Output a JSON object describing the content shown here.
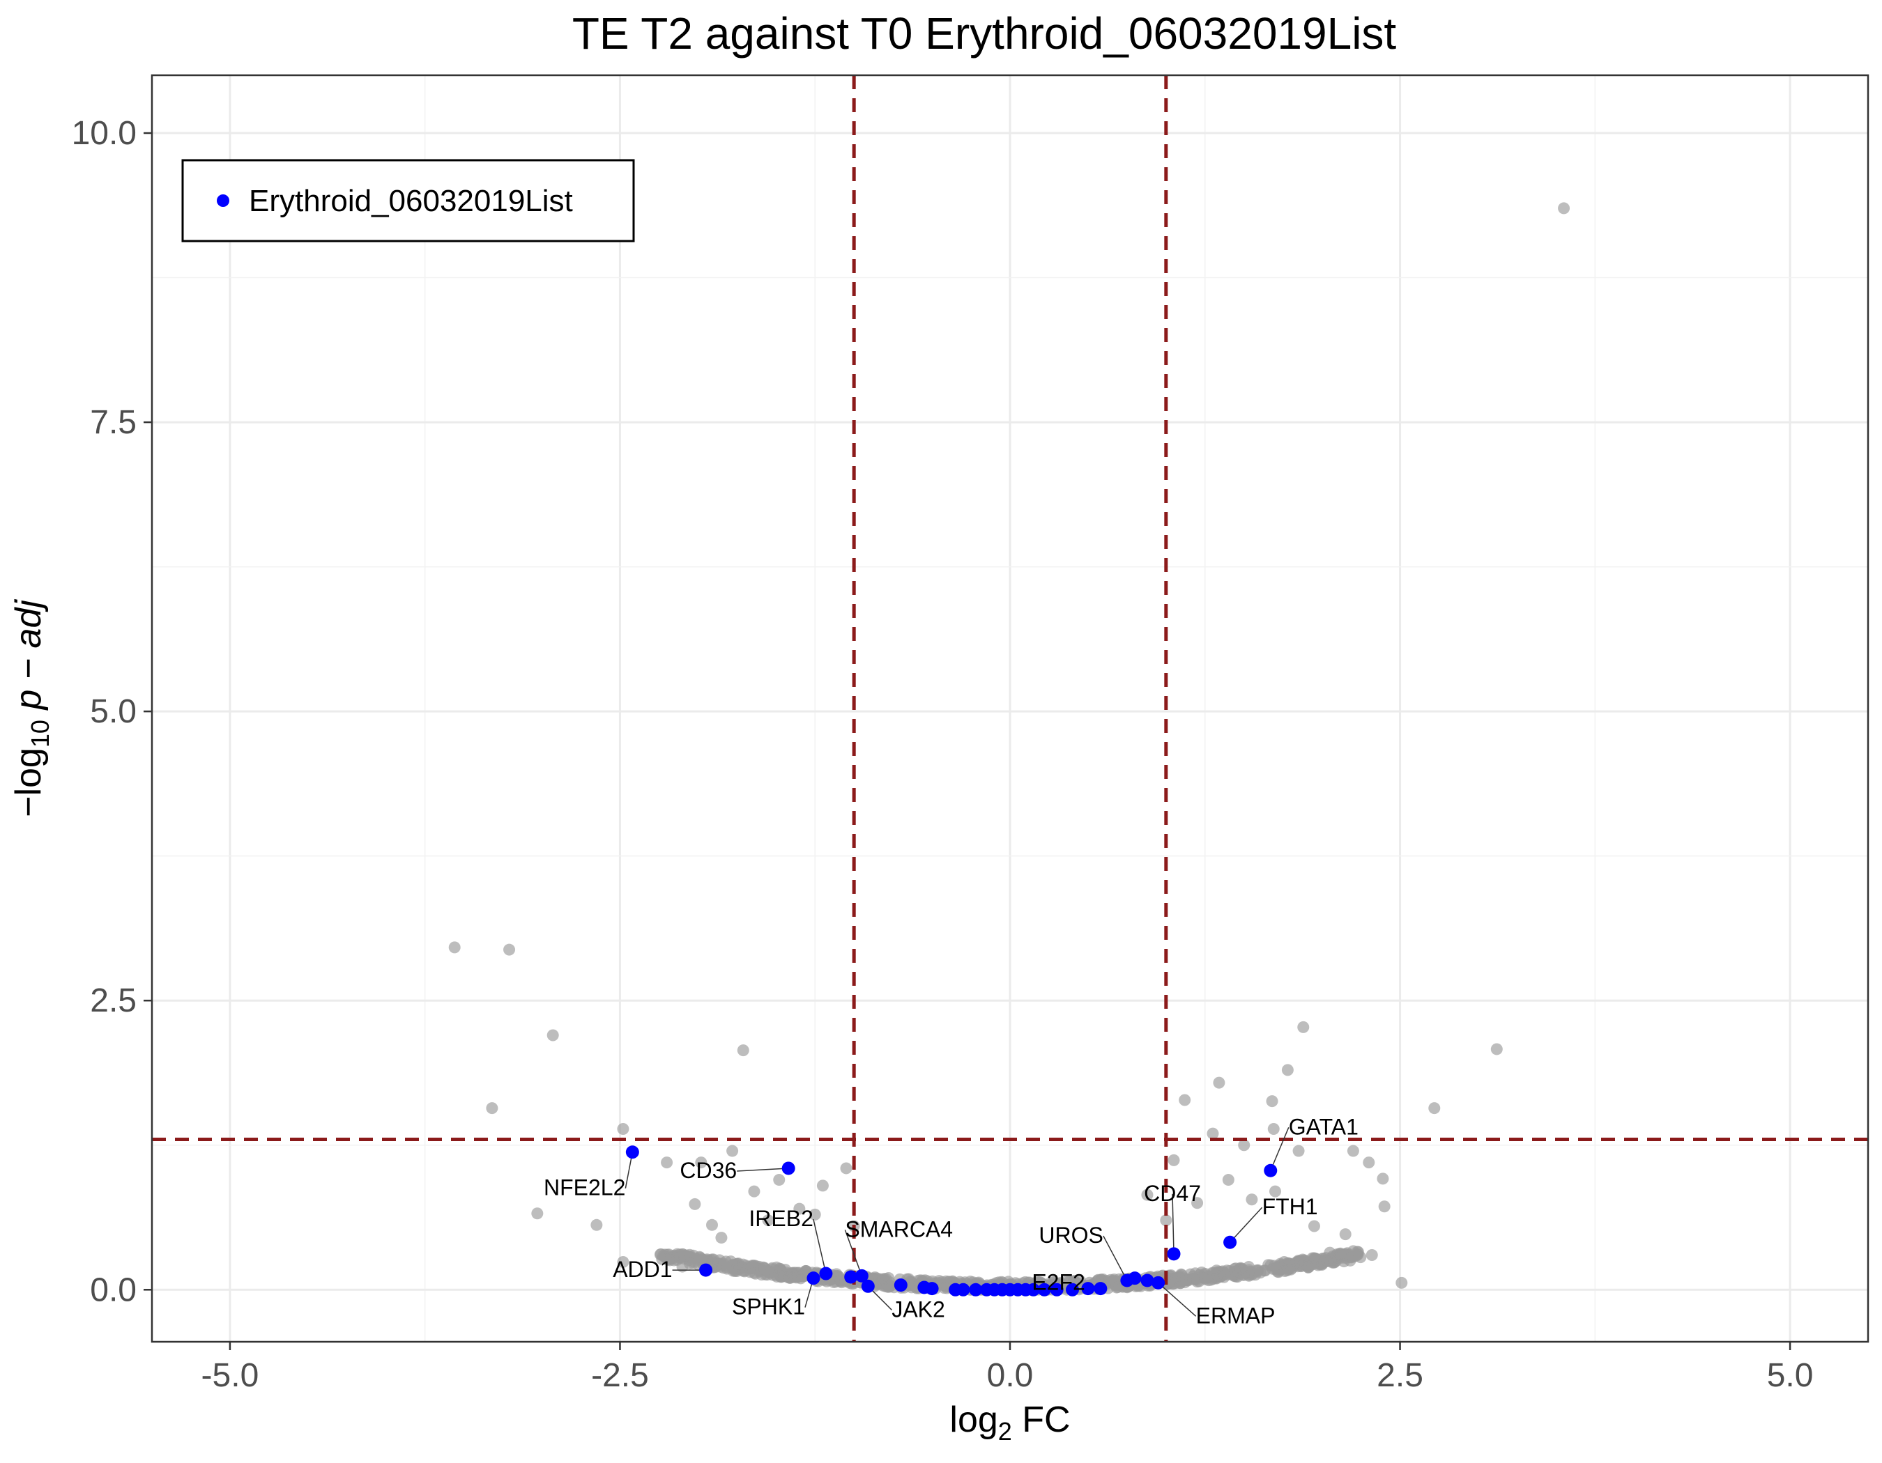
{
  "chart_data": {
    "type": "scatter",
    "title": "TE T2 against T0 Erythroid_06032019List",
    "xlabel": {
      "base": "log",
      "sub": "2",
      "rest": " FC"
    },
    "ylabel": {
      "pre": "−log",
      "sub": "10",
      "rest": " p − adj"
    },
    "xlim": [
      -5.5,
      5.5
    ],
    "ylim": [
      -0.45,
      10.5
    ],
    "x_ticks": [
      {
        "value": -5.0,
        "label": "-5.0"
      },
      {
        "value": -2.5,
        "label": "-2.5"
      },
      {
        "value": 0.0,
        "label": "0.0"
      },
      {
        "value": 2.5,
        "label": "2.5"
      },
      {
        "value": 5.0,
        "label": "5.0"
      }
    ],
    "y_ticks": [
      {
        "value": 0.0,
        "label": "0.0"
      },
      {
        "value": 2.5,
        "label": "2.5"
      },
      {
        "value": 5.0,
        "label": "5.0"
      },
      {
        "value": 7.5,
        "label": "7.5"
      },
      {
        "value": 10.0,
        "label": "10.0"
      }
    ],
    "grid": true,
    "thresholds": {
      "fc_lines": [
        -1,
        1
      ],
      "padj_line": 1.3,
      "color": "#8b1a1a"
    },
    "legend": {
      "position": "top-left",
      "entries": [
        {
          "name": "Erythroid_06032019List",
          "color": "#0000ff"
        }
      ]
    },
    "background_color": "#999999",
    "highlight_color": "#0000ff",
    "background_points": [
      [
        3.55,
        9.35
      ],
      [
        -3.56,
        2.96
      ],
      [
        -3.21,
        2.94
      ],
      [
        -2.93,
        2.2
      ],
      [
        -1.71,
        2.07
      ],
      [
        3.12,
        2.08
      ],
      [
        1.88,
        2.27
      ],
      [
        1.78,
        1.9
      ],
      [
        1.12,
        1.64
      ],
      [
        1.34,
        1.79
      ],
      [
        1.68,
        1.63
      ],
      [
        2.72,
        1.57
      ],
      [
        -3.32,
        1.57
      ],
      [
        -2.48,
        1.39
      ],
      [
        1.69,
        1.39
      ],
      [
        -3.03,
        0.66
      ],
      [
        -2.65,
        0.56
      ],
      [
        -2.48,
        0.24
      ],
      [
        2.51,
        0.06
      ],
      [
        -1.78,
        1.2
      ],
      [
        -1.98,
        1.1
      ],
      [
        -2.2,
        1.1
      ],
      [
        -1.05,
        1.05
      ],
      [
        1.05,
        1.12
      ],
      [
        2.2,
        1.2
      ],
      [
        2.3,
        1.1
      ],
      [
        2.39,
        0.96
      ],
      [
        2.4,
        0.72
      ],
      [
        2.32,
        0.3
      ],
      [
        2.05,
        0.32
      ],
      [
        -2.02,
        0.74
      ],
      [
        -1.91,
        0.56
      ],
      [
        -2.1,
        0.2
      ],
      [
        -1.48,
        0.95
      ],
      [
        -1.64,
        0.85
      ],
      [
        1.85,
        1.2
      ],
      [
        1.5,
        1.25
      ],
      [
        1.3,
        1.35
      ],
      [
        0.88,
        0.82
      ],
      [
        -1.2,
        0.9
      ],
      [
        -1.0,
        0.55
      ],
      [
        1.0,
        0.6
      ],
      [
        1.55,
        0.78
      ],
      [
        1.95,
        0.55
      ],
      [
        2.15,
        0.48
      ],
      [
        -1.85,
        0.45
      ],
      [
        -1.55,
        0.6
      ],
      [
        -1.35,
        0.7
      ],
      [
        1.4,
        0.95
      ],
      [
        1.7,
        0.85
      ],
      [
        -1.25,
        0.65
      ],
      [
        1.2,
        0.75
      ]
    ],
    "highlight_points": [
      {
        "x": -2.42,
        "y": 1.19,
        "label": "NFE2L2"
      },
      {
        "x": -1.42,
        "y": 1.05,
        "label": "CD36"
      },
      {
        "x": -1.95,
        "y": 0.17,
        "label": "ADD1"
      },
      {
        "x": -1.26,
        "y": 0.1,
        "label": "SPHK1"
      },
      {
        "x": -1.18,
        "y": 0.14,
        "label": "IREB2"
      },
      {
        "x": -0.95,
        "y": 0.12,
        "label": "SMARCA4"
      },
      {
        "x": -0.91,
        "y": 0.03,
        "label": "JAK2"
      },
      {
        "x": 0.58,
        "y": 0.01,
        "label": "E2F2"
      },
      {
        "x": 0.75,
        "y": 0.08,
        "label": "UROS"
      },
      {
        "x": 0.95,
        "y": 0.06,
        "label": "ERMAP"
      },
      {
        "x": 1.05,
        "y": 0.31,
        "label": "CD47"
      },
      {
        "x": 1.41,
        "y": 0.41,
        "label": "FTH1"
      },
      {
        "x": 1.67,
        "y": 1.03,
        "label": "GATA1"
      },
      {
        "x": -1.02,
        "y": 0.11
      },
      {
        "x": -0.7,
        "y": 0.04
      },
      {
        "x": -0.55,
        "y": 0.02
      },
      {
        "x": -0.5,
        "y": 0.01
      },
      {
        "x": -0.35,
        "y": 0.0
      },
      {
        "x": -0.3,
        "y": 0.0
      },
      {
        "x": -0.22,
        "y": 0.0
      },
      {
        "x": -0.15,
        "y": 0.0
      },
      {
        "x": -0.1,
        "y": 0.0
      },
      {
        "x": -0.05,
        "y": 0.0
      },
      {
        "x": 0.0,
        "y": 0.0
      },
      {
        "x": 0.05,
        "y": 0.0
      },
      {
        "x": 0.1,
        "y": 0.0
      },
      {
        "x": 0.15,
        "y": 0.0
      },
      {
        "x": 0.22,
        "y": 0.0
      },
      {
        "x": 0.3,
        "y": 0.0
      },
      {
        "x": 0.4,
        "y": 0.0
      },
      {
        "x": 0.5,
        "y": 0.01
      },
      {
        "x": 0.8,
        "y": 0.1
      },
      {
        "x": 0.88,
        "y": 0.08
      }
    ]
  }
}
